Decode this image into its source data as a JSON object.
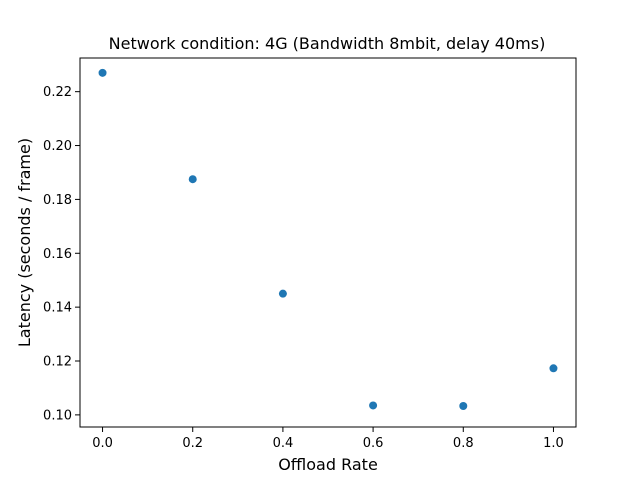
{
  "chart_data": {
    "type": "scatter",
    "title": "Network condition: 4G (Bandwidth 8mbit, delay 40ms)",
    "xlabel": "Offload Rate",
    "ylabel": "Latency (seconds / frame)",
    "xlim": [
      -0.05,
      1.05
    ],
    "ylim": [
      0.0955,
      0.2325
    ],
    "x_ticks": [
      0.0,
      0.2,
      0.4,
      0.6,
      0.8,
      1.0
    ],
    "x_tick_labels": [
      "0.0",
      "0.2",
      "0.4",
      "0.6",
      "0.8",
      "1.0"
    ],
    "y_ticks": [
      0.1,
      0.12,
      0.14,
      0.16,
      0.18,
      0.2,
      0.22
    ],
    "y_tick_labels": [
      "0.10",
      "0.12",
      "0.14",
      "0.16",
      "0.18",
      "0.20",
      "0.22"
    ],
    "grid": false,
    "legend": "none",
    "marker_color": "#1f77b4",
    "points": [
      {
        "x": 0.0,
        "y": 0.227
      },
      {
        "x": 0.2,
        "y": 0.1875
      },
      {
        "x": 0.4,
        "y": 0.145
      },
      {
        "x": 0.6,
        "y": 0.1035
      },
      {
        "x": 0.8,
        "y": 0.1033
      },
      {
        "x": 1.0,
        "y": 0.1173
      }
    ]
  }
}
